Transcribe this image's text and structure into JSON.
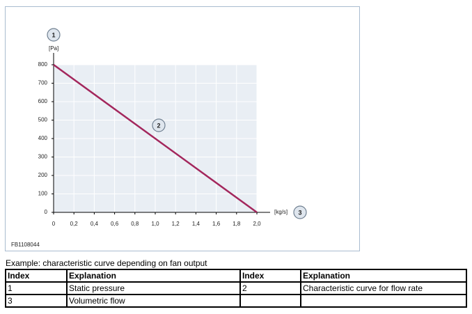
{
  "chart_data": {
    "type": "line",
    "y_label": "[Pa]",
    "x_label": "[kg/s]",
    "x": [
      0,
      2.0
    ],
    "series": [
      {
        "color": "#a3265c",
        "values": [
          800,
          0
        ]
      }
    ],
    "xlim": [
      0,
      2.0
    ],
    "ylim": [
      0,
      800
    ],
    "xticks": [
      0,
      {
        "value": 0.2,
        "label": "0,2"
      },
      {
        "value": 0.4,
        "label": "0,4"
      },
      {
        "value": 0.6,
        "label": "0,6"
      },
      {
        "value": 0.8,
        "label": "0,8"
      },
      {
        "value": 1.0,
        "label": "1,0"
      },
      {
        "value": 1.2,
        "label": "1,2"
      },
      {
        "value": 1.4,
        "label": "1,4"
      },
      {
        "value": 1.6,
        "label": "1,6"
      },
      {
        "value": 1.8,
        "label": "1,8"
      },
      {
        "value": 2.0,
        "label": "2,0"
      }
    ],
    "yticks": [
      0,
      100,
      200,
      300,
      400,
      500,
      600,
      700,
      800
    ],
    "grid": true,
    "callouts": [
      "1",
      "2",
      "3"
    ],
    "figure_code": "FB1108044"
  },
  "caption": "Example: characteristic curve depending on fan output",
  "table": {
    "header": [
      "Index",
      "Explanation",
      "Index",
      "Explanation"
    ],
    "rows": [
      [
        "1",
        "Static pressure",
        "2",
        "Characteristic curve for flow rate"
      ],
      [
        "3",
        "Volumetric flow"
      ]
    ]
  }
}
